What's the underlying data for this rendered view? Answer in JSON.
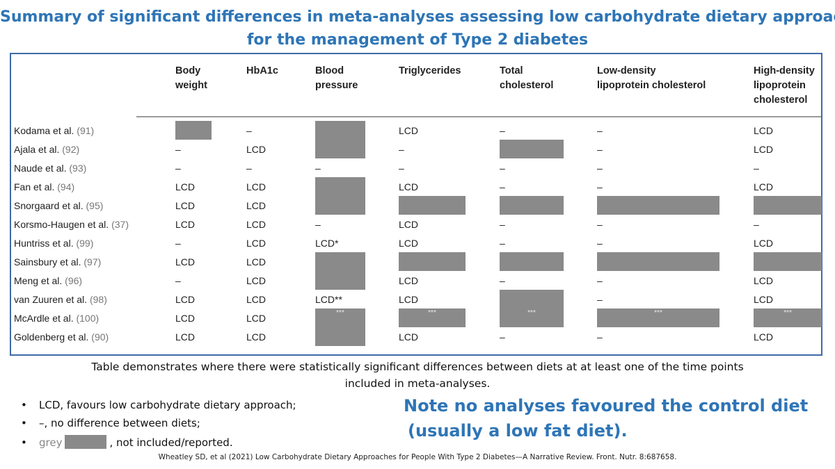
{
  "title": {
    "line1": "Summary of significant differences in meta-analyses assessing low carbohydrate dietary approaches",
    "line2": "for the management of Type 2 diabetes"
  },
  "table": {
    "columns": [
      [
        "Body",
        "weight"
      ],
      [
        "HbA1c"
      ],
      [
        "Blood",
        "pressure"
      ],
      [
        "Triglycerides"
      ],
      [
        "Total",
        "cholesterol"
      ],
      [
        "Low-density",
        "lipoprotein cholesterol"
      ],
      [
        "High-density",
        "lipoprotein",
        "cholesterol"
      ]
    ],
    "rows": [
      {
        "study": "Kodama et al.",
        "ref": "(91)",
        "cells": [
          "grey",
          "–",
          "grey",
          "LCD",
          "–",
          "–",
          "LCD"
        ]
      },
      {
        "study": "Ajala et al.",
        "ref": "(92)",
        "cells": [
          "–",
          "LCD",
          "grey",
          "–",
          "grey",
          "–",
          "LCD"
        ]
      },
      {
        "study": "Naude et al.",
        "ref": "(93)",
        "cells": [
          "–",
          "–",
          "–",
          "–",
          "–",
          "–",
          "–"
        ]
      },
      {
        "study": "Fan et al.",
        "ref": "(94)",
        "cells": [
          "LCD",
          "LCD",
          "grey",
          "LCD",
          "–",
          "–",
          "LCD"
        ]
      },
      {
        "study": "Snorgaard et al.",
        "ref": "(95)",
        "cells": [
          "LCD",
          "LCD",
          "grey",
          "grey",
          "grey",
          "grey",
          "grey"
        ]
      },
      {
        "study": "Korsmo-Haugen et al.",
        "ref": "(37)",
        "cells": [
          "LCD",
          "LCD",
          "–",
          "LCD",
          "–",
          "–",
          "–"
        ]
      },
      {
        "study": "Huntriss et al.",
        "ref": "(99)",
        "cells": [
          "–",
          "LCD",
          "LCD*",
          "LCD",
          "–",
          "–",
          "LCD"
        ]
      },
      {
        "study": "Sainsbury et al.",
        "ref": "(97)",
        "cells": [
          "LCD",
          "LCD",
          "grey",
          "grey",
          "grey",
          "grey",
          "grey"
        ]
      },
      {
        "study": "Meng et al.",
        "ref": "(96)",
        "cells": [
          "–",
          "LCD",
          "grey",
          "LCD",
          "–",
          "–",
          "LCD"
        ]
      },
      {
        "study": "van Zuuren et al.",
        "ref": "(98)",
        "cells": [
          "LCD",
          "LCD",
          "LCD**",
          "LCD",
          "grey",
          "–",
          "LCD"
        ]
      },
      {
        "study": "McArdle et al.",
        "ref": "(100)",
        "cells": [
          "LCD",
          "LCD",
          "grey***",
          "grey***",
          "grey***",
          "grey***",
          "grey***"
        ]
      },
      {
        "study": "Goldenberg et al.",
        "ref": "(90)",
        "cells": [
          "LCD",
          "LCD",
          "grey",
          "LCD",
          "–",
          "–",
          "LCD"
        ]
      }
    ]
  },
  "caption": {
    "line1": "Table demonstrates where there were statistically significant differences between diets at at least one of the time points",
    "line2": "included in meta-analyses."
  },
  "legend": {
    "bullet": "•",
    "item1": "LCD, favours low carbohydrate dietary approach;",
    "item2": "–, no difference between diets;",
    "item3_grey": "grey",
    "item3_rest": ", not included/reported."
  },
  "note": {
    "line1": "Note no analyses favoured the control diet",
    "line2": "(usually a low fat diet)."
  },
  "citation": "Wheatley SD, et al (2021) Low Carbohydrate Dietary Approaches for People With Type 2 Diabetes—A Narrative Review. Front. Nutr. 8:687658.",
  "colors": {
    "title_blue": "#2e75b6",
    "frame_blue": "#3f6aa6",
    "grey_fill": "#8a8a8a"
  }
}
